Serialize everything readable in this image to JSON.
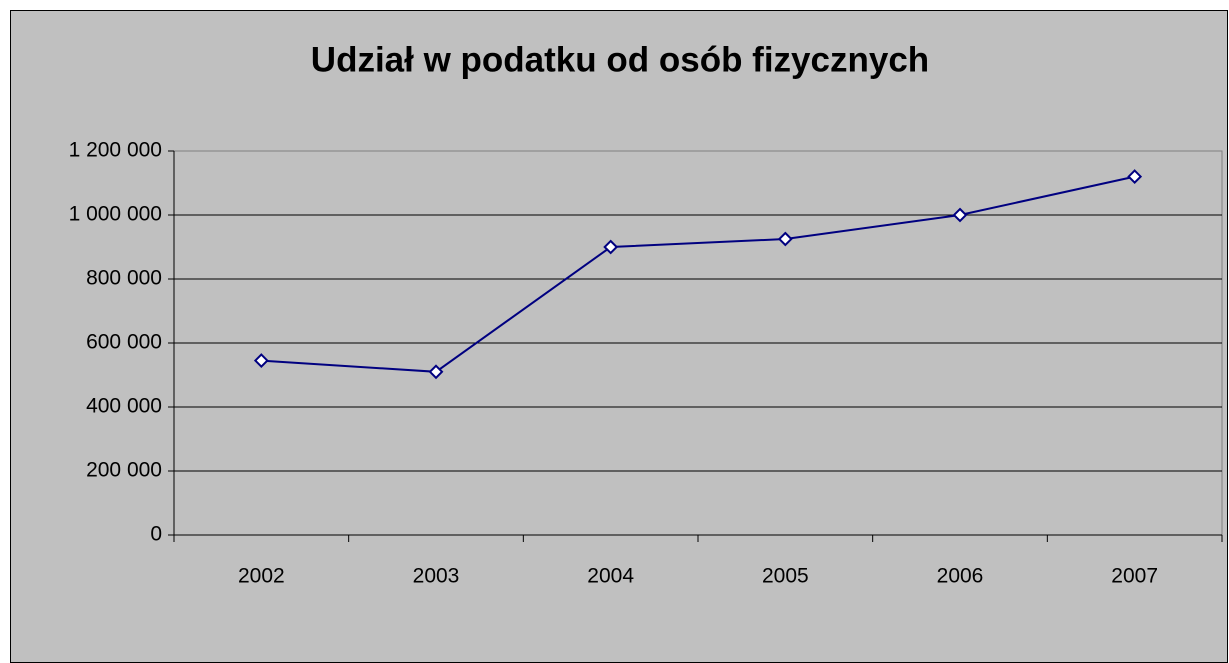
{
  "chart_data": {
    "type": "line",
    "title": "Udział w podatku od osób fizycznych",
    "categories": [
      "2002",
      "2003",
      "2004",
      "2005",
      "2006",
      "2007"
    ],
    "series": [
      {
        "name": "Udział w podatku od osób fizycznych",
        "color": "#000080",
        "values": [
          545000,
          510000,
          900000,
          925000,
          1000000,
          1120000
        ]
      }
    ],
    "ylim": [
      0,
      1200000
    ],
    "yticks": [
      0,
      {
        "value": 200000,
        "label": "200 000"
      },
      {
        "value": 400000,
        "label": "400 000"
      },
      {
        "value": 600000,
        "label": "600 000"
      },
      {
        "value": 800000,
        "label": "800 000"
      },
      {
        "value": 1000000,
        "label": "1 000 000"
      },
      {
        "value": 1200000,
        "label": "1 200 000"
      }
    ],
    "grid": true
  }
}
